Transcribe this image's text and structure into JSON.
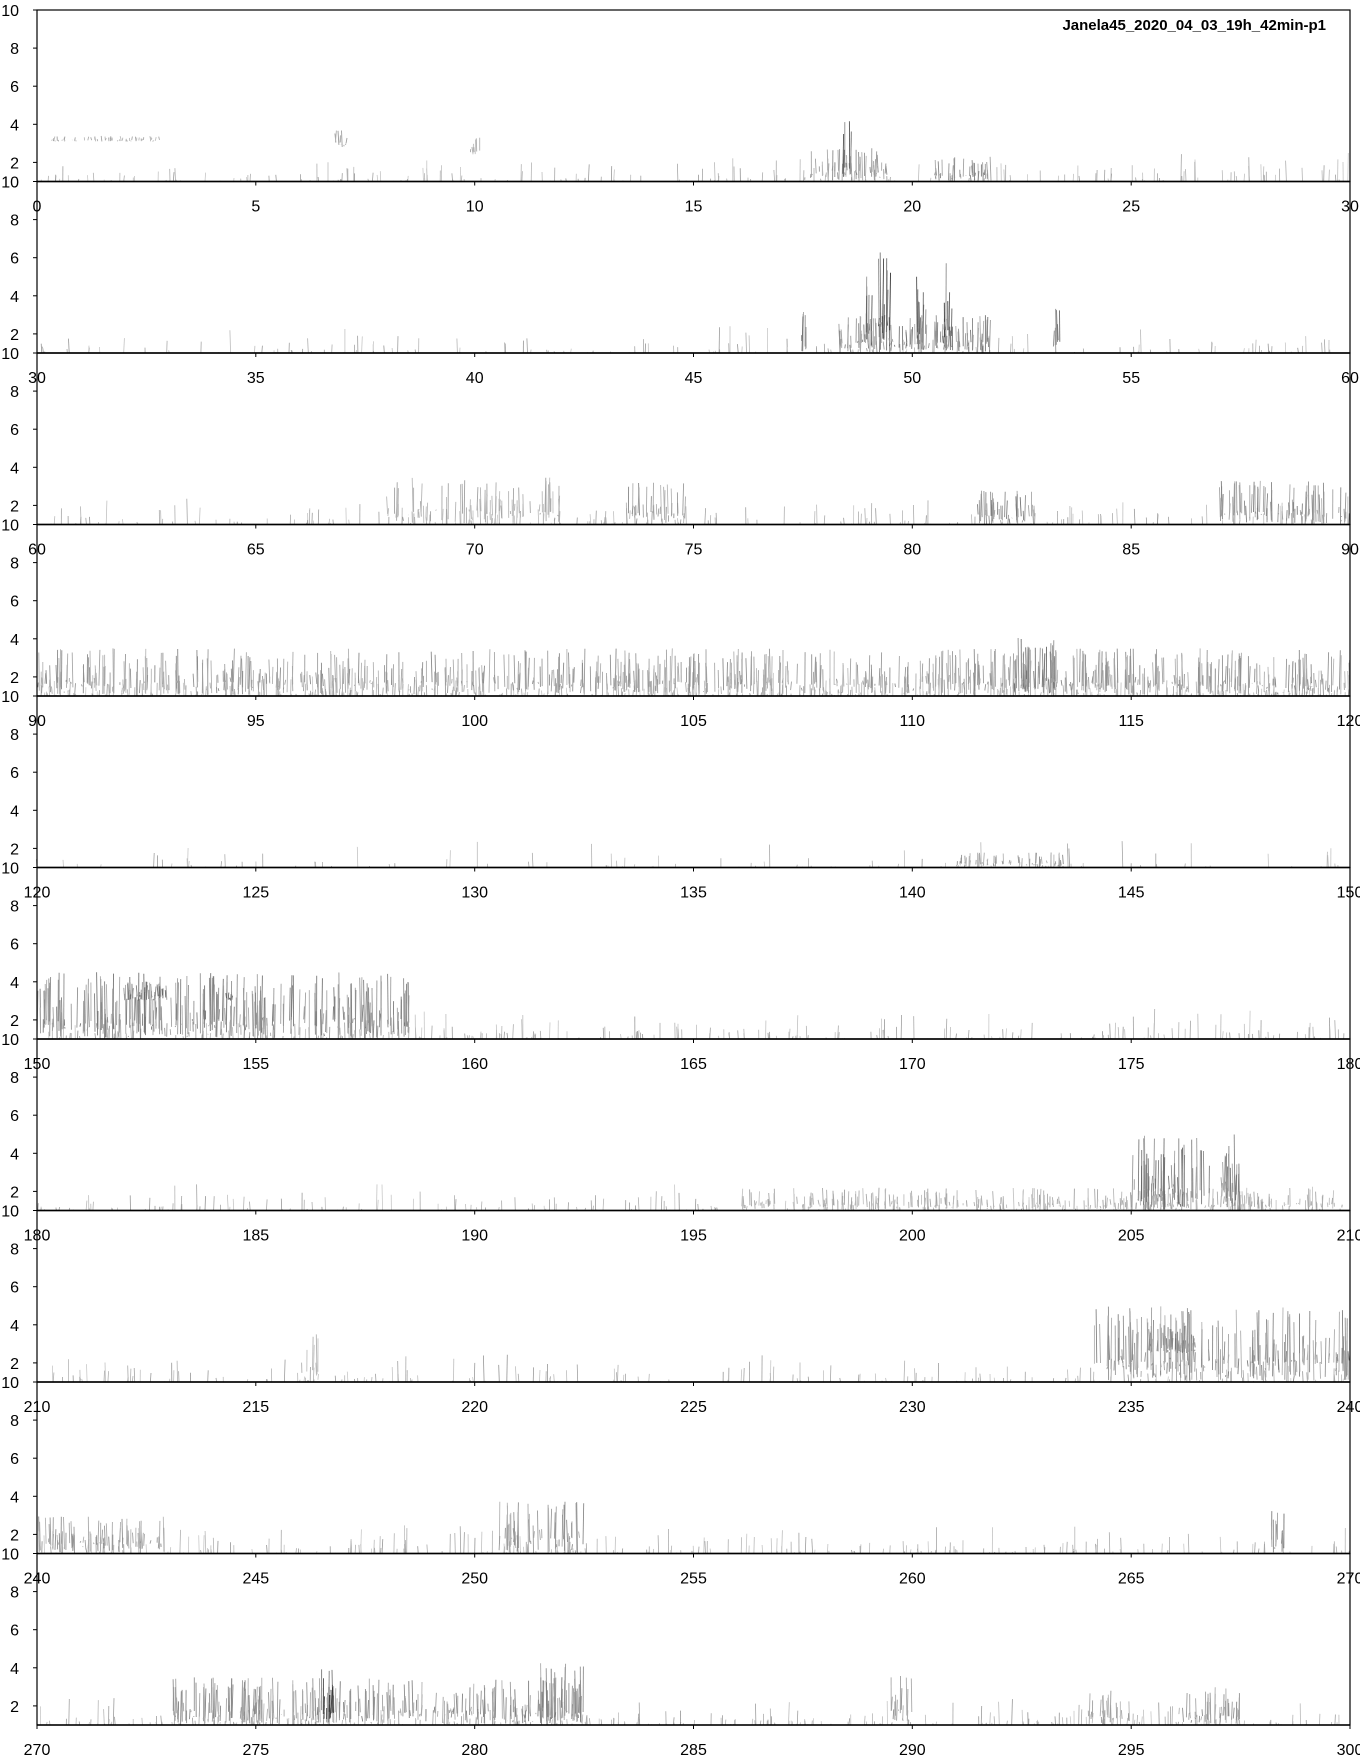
{
  "chart_data": {
    "type": "heatmap",
    "title": "Janela45_2020_04_03_19h_42min-p1",
    "xlabel": "",
    "ylabel": "",
    "grid": false,
    "colormap": "grayscale (white = low energy, black = high energy)",
    "ylim": [
      1,
      10
    ],
    "y_ticks": [
      2,
      4,
      6,
      8,
      10
    ],
    "panel_count": 10,
    "panel_span_seconds": 30,
    "panels": [
      {
        "xlim": [
          0,
          30
        ],
        "x_ticks": [
          0,
          5,
          10,
          15,
          20,
          25,
          30
        ],
        "noise_level": 0.25,
        "events": [
          {
            "t_start": 0.3,
            "t_end": 2.8,
            "f_low": 3.1,
            "f_high": 3.4,
            "intensity": 0.35
          },
          {
            "t_start": 6.8,
            "t_end": 7.2,
            "f_low": 2.8,
            "f_high": 3.7,
            "intensity": 0.4
          },
          {
            "t_start": 9.9,
            "t_end": 10.2,
            "f_low": 2.4,
            "f_high": 3.3,
            "intensity": 0.4
          },
          {
            "t_start": 17.5,
            "t_end": 19.5,
            "f_low": 1.0,
            "f_high": 3.0,
            "intensity": 0.45
          },
          {
            "t_start": 18.4,
            "t_end": 18.6,
            "f_low": 1.2,
            "f_high": 4.3,
            "intensity": 0.7
          },
          {
            "t_start": 20.5,
            "t_end": 21.8,
            "f_low": 1.0,
            "f_high": 2.3,
            "intensity": 0.5
          }
        ]
      },
      {
        "xlim": [
          30,
          60
        ],
        "x_ticks": [
          30,
          35,
          40,
          45,
          50,
          55,
          60
        ],
        "noise_level": 0.2,
        "events": [
          {
            "t_start": 47.4,
            "t_end": 47.6,
            "f_low": 1.0,
            "f_high": 3.2,
            "intensity": 0.6
          },
          {
            "t_start": 48.3,
            "t_end": 51.8,
            "f_low": 1.0,
            "f_high": 3.0,
            "intensity": 0.55
          },
          {
            "t_start": 49.2,
            "t_end": 49.5,
            "f_low": 1.0,
            "f_high": 6.8,
            "intensity": 0.85
          },
          {
            "t_start": 48.9,
            "t_end": 49.1,
            "f_low": 1.0,
            "f_high": 5.5,
            "intensity": 0.7
          },
          {
            "t_start": 50.1,
            "t_end": 50.3,
            "f_low": 1.0,
            "f_high": 5.5,
            "intensity": 0.7
          },
          {
            "t_start": 50.7,
            "t_end": 50.9,
            "f_low": 1.0,
            "f_high": 6.5,
            "intensity": 0.8
          },
          {
            "t_start": 53.2,
            "t_end": 53.4,
            "f_low": 1.0,
            "f_high": 4.0,
            "intensity": 0.6
          }
        ]
      },
      {
        "xlim": [
          60,
          90
        ],
        "x_ticks": [
          60,
          65,
          70,
          75,
          80,
          85,
          90
        ],
        "noise_level": 0.25,
        "events": [
          {
            "t_start": 68.0,
            "t_end": 72.0,
            "f_low": 1.0,
            "f_high": 3.5,
            "intensity": 0.35
          },
          {
            "t_start": 73.5,
            "t_end": 74.8,
            "f_low": 1.0,
            "f_high": 3.2,
            "intensity": 0.45
          },
          {
            "t_start": 81.5,
            "t_end": 82.8,
            "f_low": 1.0,
            "f_high": 2.8,
            "intensity": 0.55
          },
          {
            "t_start": 87.0,
            "t_end": 90.0,
            "f_low": 1.0,
            "f_high": 3.3,
            "intensity": 0.5
          }
        ]
      },
      {
        "xlim": [
          90,
          120
        ],
        "x_ticks": [
          90,
          95,
          100,
          105,
          110,
          115,
          120
        ],
        "noise_level": 0.55,
        "events": [
          {
            "t_start": 90.0,
            "t_end": 120.0,
            "f_low": 1.0,
            "f_high": 3.5,
            "intensity": 0.45
          },
          {
            "t_start": 112.2,
            "t_end": 113.3,
            "f_low": 1.0,
            "f_high": 4.2,
            "intensity": 0.6
          }
        ]
      },
      {
        "xlim": [
          120,
          150
        ],
        "x_ticks": [
          120,
          125,
          130,
          135,
          140,
          145,
          150
        ],
        "noise_level": 0.12,
        "events": [
          {
            "t_start": 141.0,
            "t_end": 143.5,
            "f_low": 1.0,
            "f_high": 1.8,
            "intensity": 0.45
          }
        ]
      },
      {
        "xlim": [
          150,
          180
        ],
        "x_ticks": [
          150,
          155,
          160,
          165,
          170,
          175,
          180
        ],
        "noise_level": 0.35,
        "events": [
          {
            "t_start": 150.0,
            "t_end": 158.5,
            "f_low": 1.0,
            "f_high": 4.5,
            "intensity": 0.55
          },
          {
            "t_start": 152.0,
            "t_end": 153.0,
            "f_low": 3.0,
            "f_high": 4.0,
            "intensity": 0.65
          },
          {
            "t_start": 154.3,
            "t_end": 154.5,
            "f_low": 3.0,
            "f_high": 3.5,
            "intensity": 0.7
          }
        ]
      },
      {
        "xlim": [
          180,
          210
        ],
        "x_ticks": [
          180,
          185,
          190,
          195,
          200,
          205,
          210
        ],
        "noise_level": 0.25,
        "events": [
          {
            "t_start": 196.0,
            "t_end": 210.0,
            "f_low": 1.0,
            "f_high": 2.2,
            "intensity": 0.35
          },
          {
            "t_start": 205.0,
            "t_end": 207.5,
            "f_low": 1.0,
            "f_high": 5.0,
            "intensity": 0.6
          }
        ]
      },
      {
        "xlim": [
          210,
          240
        ],
        "x_ticks": [
          210,
          215,
          220,
          225,
          230,
          235,
          240
        ],
        "noise_level": 0.25,
        "events": [
          {
            "t_start": 216.0,
            "t_end": 216.5,
            "f_low": 1.0,
            "f_high": 3.5,
            "intensity": 0.3
          },
          {
            "t_start": 234.0,
            "t_end": 240.0,
            "f_low": 1.0,
            "f_high": 5.0,
            "intensity": 0.5
          },
          {
            "t_start": 235.3,
            "t_end": 236.5,
            "f_low": 2.5,
            "f_high": 4.0,
            "intensity": 0.6
          }
        ]
      },
      {
        "xlim": [
          240,
          270
        ],
        "x_ticks": [
          240,
          245,
          250,
          255,
          260,
          265,
          270
        ],
        "noise_level": 0.3,
        "events": [
          {
            "t_start": 240.0,
            "t_end": 243.0,
            "f_low": 1.0,
            "f_high": 3.0,
            "intensity": 0.45
          },
          {
            "t_start": 250.5,
            "t_end": 252.5,
            "f_low": 1.0,
            "f_high": 3.8,
            "intensity": 0.45
          },
          {
            "t_start": 268.2,
            "t_end": 268.5,
            "f_low": 1.0,
            "f_high": 3.5,
            "intensity": 0.55
          }
        ]
      },
      {
        "xlim": [
          270,
          300
        ],
        "x_ticks": [
          270,
          275,
          280,
          285,
          290,
          295,
          300
        ],
        "noise_level": 0.35,
        "events": [
          {
            "t_start": 273.0,
            "t_end": 282.5,
            "f_low": 1.0,
            "f_high": 3.5,
            "intensity": 0.5
          },
          {
            "t_start": 276.5,
            "t_end": 276.8,
            "f_low": 1.0,
            "f_high": 4.0,
            "intensity": 0.85
          },
          {
            "t_start": 281.5,
            "t_end": 282.5,
            "f_low": 1.0,
            "f_high": 4.3,
            "intensity": 0.55
          },
          {
            "t_start": 289.5,
            "t_end": 290.0,
            "f_low": 1.0,
            "f_high": 3.7,
            "intensity": 0.45
          },
          {
            "t_start": 294.0,
            "t_end": 295.0,
            "f_low": 1.0,
            "f_high": 2.8,
            "intensity": 0.4
          },
          {
            "t_start": 296.0,
            "t_end": 297.5,
            "f_low": 1.0,
            "f_high": 3.0,
            "intensity": 0.45
          }
        ]
      }
    ]
  }
}
